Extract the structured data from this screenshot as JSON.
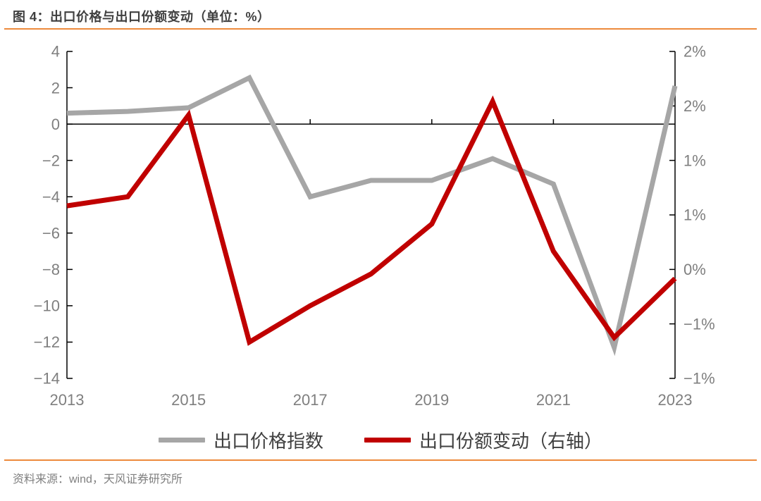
{
  "page": {
    "title": "图 4：出口价格与出口份额变动（单位：%）",
    "source": "资料来源：wind，天风证券研究所"
  },
  "colors": {
    "accent_orange": "#ED8A3C",
    "gray_series": "#A6A6A6",
    "red_series": "#C00000",
    "axis_line": "#000000",
    "axis_text": "#7F7F7F",
    "title_text": "#3F3F3F",
    "legend_text": "#404040",
    "source_text": "#7F7F7F"
  },
  "legend": {
    "items": [
      {
        "label": "出口价格指数",
        "color": "#A6A6A6"
      },
      {
        "label": "出口份额变动（右轴）",
        "color": "#C00000"
      }
    ]
  },
  "chart_data": {
    "type": "line",
    "title": "出口价格与出口份额变动（单位：%）",
    "x": [
      2013,
      2014,
      2015,
      2016,
      2017,
      2018,
      2019,
      2020,
      2021,
      2022,
      2023
    ],
    "x_tick_labels": [
      "2013",
      "2015",
      "2017",
      "2019",
      "2021",
      "2023"
    ],
    "series": [
      {
        "name": "出口价格指数",
        "axis": "left",
        "color": "#A6A6A6",
        "values": [
          0.6,
          0.7,
          0.9,
          2.55,
          -4.0,
          -3.1,
          -3.1,
          -1.9,
          -3.3,
          -12.3,
          2.1
        ]
      },
      {
        "name": "出口份额变动（右轴）",
        "axis": "right",
        "color": "#C00000",
        "values": [
          0.7,
          0.8,
          1.7,
          -0.8,
          -0.4,
          -0.05,
          0.5,
          1.85,
          0.2,
          -0.75,
          -0.1
        ]
      }
    ],
    "left_axis": {
      "min": -14,
      "max": 4,
      "tick_step": 2,
      "tick_labels": [
        "4",
        "2",
        "0",
        "−2",
        "−4",
        "−6",
        "−8",
        "−10",
        "−12",
        "−14"
      ]
    },
    "right_axis": {
      "min": -1.2,
      "max": 2.4,
      "tick_step": 0.6,
      "tick_labels": [
        "2%",
        "2%",
        "1%",
        "1%",
        "0%",
        "−1%",
        "−1%"
      ]
    },
    "zero_line": true,
    "grid": false,
    "legend_position": "bottom"
  }
}
